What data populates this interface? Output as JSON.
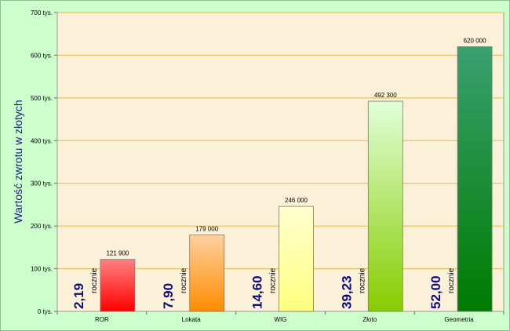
{
  "chart_data": {
    "type": "bar",
    "categories": [
      "ROR",
      "Lokata",
      "WIG",
      "Złoto",
      "Geometria"
    ],
    "values": [
      121900,
      179000,
      246000,
      492300,
      620000
    ],
    "value_labels": [
      "121 900",
      "179 000",
      "246 000",
      "492 300",
      "620 000"
    ],
    "rate_values": [
      "2,19",
      "7,90",
      "14,60",
      "39,23",
      "52,00"
    ],
    "rate_unit": "rocznie",
    "ylabel": "Wartość zwrotu w złotych",
    "xlabel": "",
    "title": "",
    "ylim": [
      0,
      700000
    ],
    "yticks": [
      0,
      100000,
      200000,
      300000,
      400000,
      500000,
      600000,
      700000
    ],
    "ytick_labels": [
      "0 tys.",
      "100 tys.",
      "200 tys.",
      "300 tys.",
      "400 tys.",
      "500 tys.",
      "600 tys.",
      "700 tys."
    ],
    "grid": true,
    "legend": "none",
    "colors": {
      "plot_background": "#fbf1d8",
      "gridline": "#e8b84a",
      "frame_background": "#ccffcc",
      "bar_gradients": [
        [
          "#ff8080",
          "#ff0000"
        ],
        [
          "#ffd0a0",
          "#ff8c00"
        ],
        [
          "#ffffd0",
          "#ffff80"
        ],
        [
          "#e0ffd8",
          "#88cc00"
        ],
        [
          "#3aa070",
          "#007a00"
        ]
      ]
    }
  }
}
